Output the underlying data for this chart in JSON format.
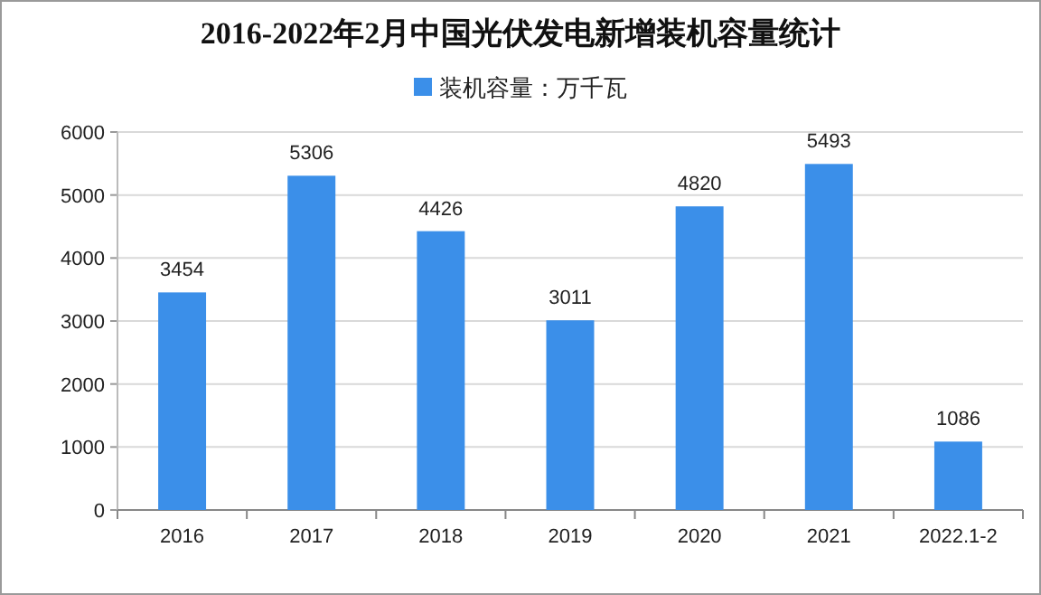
{
  "chart_data": {
    "type": "bar",
    "title": "2016-2022年2月中国光伏发电新增装机容量统计",
    "categories": [
      "2016",
      "2017",
      "2018",
      "2019",
      "2020",
      "2021",
      "2022.1-2"
    ],
    "series": [
      {
        "name": "装机容量：万千瓦",
        "color": "#3b8fe9",
        "values": [
          3454,
          5306,
          4426,
          3011,
          4820,
          5493,
          1086
        ]
      }
    ],
    "ylim": [
      0,
      6000
    ],
    "yticks": [
      0,
      1000,
      2000,
      3000,
      4000,
      5000,
      6000
    ],
    "grid": "y",
    "legend": "top",
    "data_labels": true
  }
}
